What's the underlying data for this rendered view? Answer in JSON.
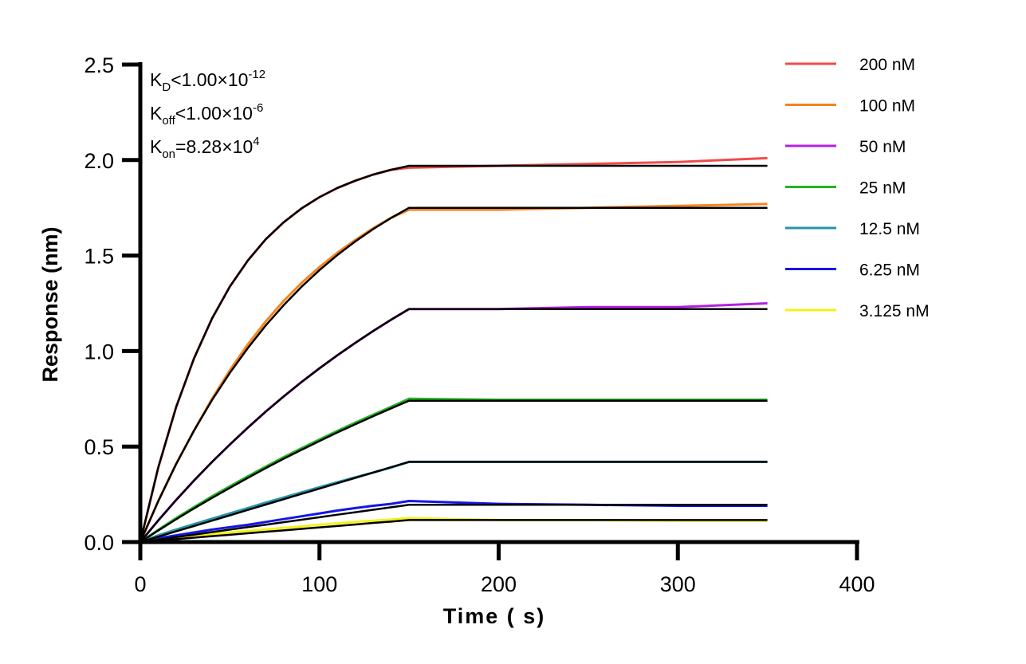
{
  "chart_data": {
    "type": "line",
    "xlabel": "Time ( s)",
    "ylabel": "Response (nm)",
    "xlim": [
      0,
      400
    ],
    "ylim": [
      0,
      2.5
    ],
    "xticks": [
      "0",
      "100",
      "200",
      "300",
      "400"
    ],
    "yticks": [
      "0.0",
      "0.5",
      "1.0",
      "1.5",
      "2.0",
      "2.5"
    ],
    "grid": false,
    "legend_position": "top-right",
    "annotations": {
      "kd": {
        "k": "K",
        "sub": "D",
        "rel": "<1.00×10",
        "exp": "-12"
      },
      "koff": {
        "k": "K",
        "sub": "off",
        "rel": "<1.00×10",
        "exp": "-6"
      },
      "kon": {
        "k": "K",
        "sub": "on",
        "rel": "=8.28×10",
        "exp": "4"
      }
    },
    "fit_color": "#000000",
    "x": [
      0,
      10,
      20,
      30,
      40,
      50,
      60,
      70,
      80,
      90,
      100,
      110,
      120,
      130,
      140,
      150,
      200,
      250,
      300,
      350
    ],
    "series": [
      {
        "name": "200 nM",
        "color": "#ef4b4b",
        "values": [
          0,
          0.39,
          0.706,
          0.962,
          1.17,
          1.338,
          1.474,
          1.585,
          1.674,
          1.747,
          1.806,
          1.854,
          1.892,
          1.924,
          1.949,
          1.96,
          1.97,
          1.98,
          1.99,
          2.01
        ],
        "fit": [
          0,
          0.39,
          0.706,
          0.962,
          1.17,
          1.338,
          1.474,
          1.585,
          1.674,
          1.747,
          1.806,
          1.854,
          1.892,
          1.924,
          1.949,
          1.97,
          1.97,
          1.97,
          1.97,
          1.97
        ]
      },
      {
        "name": "100 nM",
        "color": "#f5841f",
        "values": [
          0,
          0.214,
          0.408,
          0.584,
          0.75,
          0.9,
          1.035,
          1.155,
          1.262,
          1.357,
          1.44,
          1.515,
          1.582,
          1.643,
          1.698,
          1.74,
          1.74,
          1.75,
          1.76,
          1.77
        ],
        "fit": [
          0,
          0.214,
          0.408,
          0.584,
          0.743,
          0.886,
          1.016,
          1.134,
          1.24,
          1.337,
          1.424,
          1.503,
          1.574,
          1.639,
          1.697,
          1.75,
          1.75,
          1.75,
          1.75,
          1.75
        ]
      },
      {
        "name": "50 nM",
        "color": "#b420e0",
        "values": [
          0,
          0.113,
          0.22,
          0.322,
          0.419,
          0.511,
          0.599,
          0.683,
          0.762,
          0.838,
          0.91,
          0.978,
          1.043,
          1.105,
          1.164,
          1.22,
          1.22,
          1.23,
          1.23,
          1.25
        ],
        "fit": [
          0,
          0.113,
          0.22,
          0.322,
          0.419,
          0.511,
          0.599,
          0.683,
          0.762,
          0.838,
          0.91,
          0.978,
          1.043,
          1.105,
          1.164,
          1.22,
          1.22,
          1.22,
          1.22,
          1.22
        ]
      },
      {
        "name": "25 nM",
        "color": "#22b522",
        "values": [
          0,
          0.064,
          0.125,
          0.183,
          0.239,
          0.292,
          0.344,
          0.395,
          0.444,
          0.491,
          0.537,
          0.582,
          0.625,
          0.667,
          0.708,
          0.75,
          0.745,
          0.745,
          0.745,
          0.745
        ],
        "fit": [
          0,
          0.06,
          0.119,
          0.176,
          0.231,
          0.284,
          0.336,
          0.387,
          0.436,
          0.483,
          0.529,
          0.574,
          0.617,
          0.659,
          0.7,
          0.74,
          0.74,
          0.74,
          0.74,
          0.74
        ]
      },
      {
        "name": "12.5 nM",
        "color": "#2596a8",
        "values": [
          0,
          0.035,
          0.065,
          0.094,
          0.122,
          0.15,
          0.178,
          0.206,
          0.233,
          0.26,
          0.287,
          0.313,
          0.339,
          0.364,
          0.39,
          0.42,
          0.42,
          0.42,
          0.42,
          0.42
        ],
        "fit": [
          0,
          0.028,
          0.056,
          0.084,
          0.112,
          0.14,
          0.168,
          0.196,
          0.224,
          0.252,
          0.28,
          0.308,
          0.336,
          0.364,
          0.392,
          0.42,
          0.42,
          0.42,
          0.42,
          0.42
        ]
      },
      {
        "name": "6.25 nM",
        "color": "#1515e8",
        "values": [
          0,
          0.02,
          0.035,
          0.05,
          0.065,
          0.078,
          0.09,
          0.105,
          0.12,
          0.135,
          0.15,
          0.165,
          0.178,
          0.19,
          0.2,
          0.215,
          0.2,
          0.195,
          0.19,
          0.19
        ],
        "fit": [
          0,
          0.013,
          0.026,
          0.039,
          0.052,
          0.065,
          0.078,
          0.091,
          0.104,
          0.117,
          0.13,
          0.143,
          0.156,
          0.169,
          0.182,
          0.195,
          0.195,
          0.195,
          0.195,
          0.195
        ]
      },
      {
        "name": "3.125 nM",
        "color": "#f2f21a",
        "values": [
          0,
          0.012,
          0.022,
          0.032,
          0.042,
          0.05,
          0.058,
          0.066,
          0.074,
          0.082,
          0.09,
          0.098,
          0.106,
          0.112,
          0.118,
          0.125,
          0.115,
          0.115,
          0.112,
          0.112
        ],
        "fit": [
          0,
          0.008,
          0.015,
          0.023,
          0.031,
          0.038,
          0.046,
          0.054,
          0.061,
          0.069,
          0.077,
          0.084,
          0.092,
          0.1,
          0.107,
          0.115,
          0.115,
          0.115,
          0.115,
          0.115
        ]
      }
    ]
  }
}
